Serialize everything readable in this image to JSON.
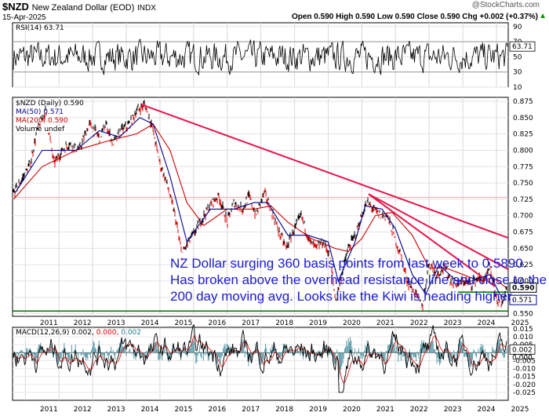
{
  "header": {
    "symbol": "$NZD",
    "name": "New Zealand Dollar (EOD)",
    "exchange": "INDX",
    "date": "15-Apr-2025",
    "watermark": "@StockCharts.com",
    "ohlc_text": "Open 0.590  High 0.590  Low 0.590  Close 0.590  Chg +0.002 (+0.37%)",
    "chg_arrow": "▲"
  },
  "legend": {
    "rsi": "RSI(14) 63.71",
    "price": "$NZD (Daily) 0.590",
    "ma50": "MA(50) 0.571",
    "ma200": "MA(200) 0.590",
    "volume": "Volume undef",
    "macd_prefix": "MACD(12,26,9) 0.002,",
    "macd_signal": "0.000,",
    "macd_hist": "0.002"
  },
  "annotation": {
    "line1": "NZ Dollar surging 360 basis points from last week to 0.5890.",
    "line2": "Has broken above the overhead resistance line and close to the",
    "line3": "200 day moving avg. Looks like the Kiwi is heading higher."
  },
  "colors": {
    "price_up": "#000000",
    "price_down": "#dd0000",
    "ma50": "#00008b",
    "ma200": "#cc0000",
    "trendline": "#e8154a",
    "support": "#008000",
    "resistance_725": "#f4a0a0",
    "annotation": "#1c1ccf",
    "macd_hist": "#2c7f90",
    "rsi": "#000000"
  },
  "chart_data": {
    "type": "line",
    "panels": [
      {
        "name": "rsi",
        "ylim": [
          10,
          95
        ],
        "yticks": [
          10,
          30,
          50,
          70,
          90
        ],
        "last_value": 63.71,
        "value_tag": "63.71",
        "reference_lines": [
          30,
          70
        ]
      },
      {
        "name": "price",
        "ylim": [
          0.546,
          0.881
        ],
        "yticks": [
          0.55,
          0.575,
          0.6,
          0.625,
          0.65,
          0.675,
          0.7,
          0.725,
          0.75,
          0.775,
          0.8,
          0.825,
          0.85,
          0.875
        ],
        "ytick_labels": [
          "0.550",
          "0.575",
          "0.600",
          "0.625",
          "0.650",
          "0.675",
          "0.700",
          "0.725",
          "0.750",
          "0.775",
          "0.800",
          "0.825",
          "0.850",
          "0.875"
        ],
        "xticks": [
          "2011",
          "2012",
          "2013",
          "2014",
          "2015",
          "2016",
          "2017",
          "2018",
          "2019",
          "2020",
          "2021",
          "2022",
          "2023",
          "2024",
          "2025"
        ],
        "price_tag": "0.590",
        "ma50_tag": "0.571",
        "series": [
          {
            "name": "$NZD",
            "x": [
              2010.65,
              2010.9,
              2011.15,
              2011.35,
              2011.6,
              2011.85,
              2012.1,
              2012.3,
              2012.6,
              2012.9,
              2013.2,
              2013.4,
              2013.6,
              2013.85,
              2014.1,
              2014.3,
              2014.55,
              2014.75,
              2015.0,
              2015.2,
              2015.45,
              2015.65,
              2015.85,
              2016.1,
              2016.3,
              2016.55,
              2016.75,
              2017.0,
              2017.2,
              2017.45,
              2017.65,
              2017.85,
              2018.1,
              2018.3,
              2018.5,
              2018.75,
              2019.0,
              2019.2,
              2019.45,
              2019.65,
              2019.85,
              2020.05,
              2020.22,
              2020.4,
              2020.6,
              2020.8,
              2021.0,
              2021.15,
              2021.35,
              2021.55,
              2021.75,
              2021.95,
              2022.15,
              2022.35,
              2022.6,
              2022.8,
              2023.0,
              2023.2,
              2023.45,
              2023.65,
              2023.85,
              2024.05,
              2024.25,
              2024.45,
              2024.65,
              2024.8,
              2025.0,
              2025.15,
              2025.29
            ],
            "y": [
              0.735,
              0.755,
              0.78,
              0.83,
              0.86,
              0.78,
              0.8,
              0.81,
              0.8,
              0.84,
              0.82,
              0.84,
              0.81,
              0.83,
              0.84,
              0.86,
              0.87,
              0.84,
              0.78,
              0.75,
              0.7,
              0.64,
              0.66,
              0.68,
              0.7,
              0.72,
              0.73,
              0.69,
              0.72,
              0.71,
              0.73,
              0.7,
              0.735,
              0.71,
              0.68,
              0.65,
              0.68,
              0.7,
              0.66,
              0.65,
              0.66,
              0.64,
              0.57,
              0.61,
              0.65,
              0.67,
              0.7,
              0.72,
              0.71,
              0.7,
              0.7,
              0.67,
              0.64,
              0.6,
              0.58,
              0.56,
              0.63,
              0.61,
              0.62,
              0.6,
              0.595,
              0.6,
              0.595,
              0.605,
              0.6,
              0.62,
              0.575,
              0.56,
              0.59
            ]
          },
          {
            "name": "MA(50)",
            "x": [
              2010.7,
              2011.5,
              2012.5,
              2013.2,
              2013.8,
              2014.4,
              2014.8,
              2015.3,
              2015.8,
              2016.5,
              2017.2,
              2017.8,
              2018.2,
              2018.8,
              2019.4,
              2020.0,
              2020.3,
              2020.8,
              2021.1,
              2021.6,
              2022.0,
              2022.5,
              2022.9,
              2023.3,
              2023.8,
              2024.3,
              2024.8,
              2025.1,
              2025.29
            ],
            "y": [
              0.735,
              0.8,
              0.8,
              0.83,
              0.82,
              0.85,
              0.84,
              0.76,
              0.66,
              0.71,
              0.71,
              0.72,
              0.72,
              0.67,
              0.67,
              0.66,
              0.6,
              0.66,
              0.715,
              0.71,
              0.68,
              0.61,
              0.58,
              0.625,
              0.6,
              0.6,
              0.61,
              0.58,
              0.571
            ]
          },
          {
            "name": "MA(200)",
            "x": [
              2010.65,
              2011.5,
              2012.5,
              2013.5,
              2014.3,
              2014.8,
              2015.3,
              2015.8,
              2016.3,
              2017.0,
              2017.8,
              2018.3,
              2018.8,
              2019.5,
              2020.2,
              2020.6,
              2021.0,
              2021.4,
              2021.9,
              2022.5,
              2023.0,
              2023.5,
              2024.0,
              2024.5,
              2024.9,
              2025.29
            ],
            "y": [
              0.725,
              0.775,
              0.8,
              0.815,
              0.825,
              0.84,
              0.8,
              0.72,
              0.685,
              0.71,
              0.71,
              0.715,
              0.69,
              0.665,
              0.65,
              0.645,
              0.665,
              0.7,
              0.705,
              0.67,
              0.62,
              0.62,
              0.61,
              0.6,
              0.605,
              0.59
            ]
          }
        ],
        "trendlines": [
          {
            "x": [
              2014.45,
              2025.35
            ],
            "y": [
              0.87,
              0.666
            ]
          },
          {
            "x": [
              2021.2,
              2025.35
            ],
            "y": [
              0.733,
              0.618
            ]
          },
          {
            "x": [
              2021.2,
              2024.95
            ],
            "y": [
              0.733,
              0.592
            ]
          }
        ],
        "horizontal_lines": [
          {
            "y": 0.554,
            "x": [
              2010.62,
              2025.35
            ],
            "color": "support"
          },
          {
            "y": 0.583,
            "x": [
              2023.85,
              2025.35
            ],
            "color": "support"
          },
          {
            "y": 0.728,
            "x": [
              2010.62,
              2025.35
            ],
            "color": "resistance_725"
          }
        ]
      },
      {
        "name": "macd",
        "ylim": [
          -0.03,
          0.016
        ],
        "yticks": [
          0.015,
          0.01,
          0.005,
          0.0,
          -0.005,
          -0.01,
          -0.015,
          -0.02,
          -0.025
        ],
        "ytick_labels": [
          "0.015",
          "0.010",
          "0.005",
          "0.000",
          "-0.005",
          "-0.010",
          "-0.015",
          "-0.020",
          "-0.025"
        ],
        "xticks": [
          "2011",
          "2012",
          "2013",
          "2014",
          "2015",
          "2016",
          "2017",
          "2018",
          "2019",
          "2020",
          "2021",
          "2022",
          "2023",
          "2024",
          "2025"
        ],
        "macd_tag": "0.002",
        "signal_tag": "0.000"
      }
    ]
  }
}
